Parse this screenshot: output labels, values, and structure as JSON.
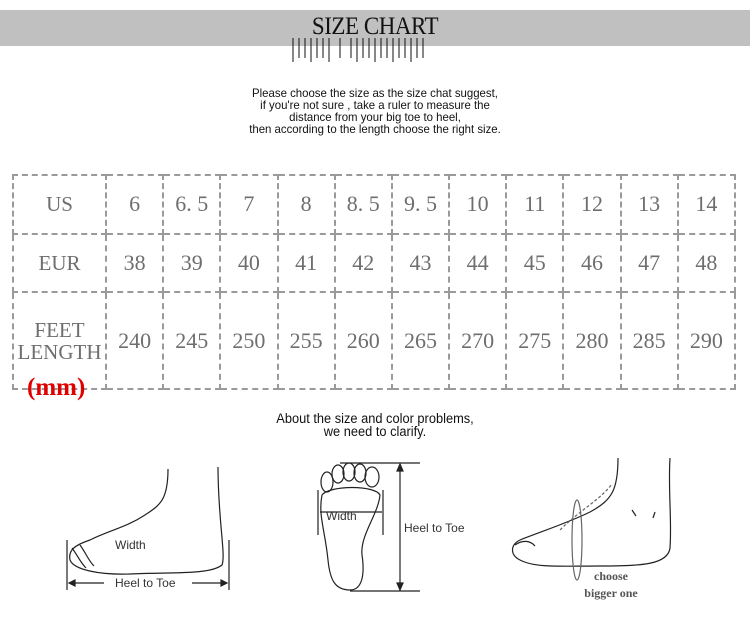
{
  "header": {
    "title": "SIZE CHART"
  },
  "intro_lines": [
    "Please choose the size as the size chat suggest,",
    "if you're not sure , take a ruler to measure the",
    "distance from your big toe to heel,",
    "then according to the length choose the right size."
  ],
  "table": {
    "rows": [
      {
        "label": "US",
        "values": [
          "6",
          "6. 5",
          "7",
          "8",
          "8. 5",
          "9. 5",
          "10",
          "11",
          "12",
          "13",
          "14"
        ]
      },
      {
        "label": "EUR",
        "values": [
          "38",
          "39",
          "40",
          "41",
          "42",
          "43",
          "44",
          "45",
          "46",
          "47",
          "48"
        ]
      },
      {
        "label": "FEET LENGTH",
        "values": [
          "240",
          "245",
          "250",
          "255",
          "260",
          "265",
          "270",
          "275",
          "280",
          "285",
          "290"
        ]
      }
    ],
    "unit": "(mm)",
    "unit_color": "#e00000"
  },
  "clarify_lines": [
    "About the size and color problems,",
    "we need to clarify."
  ],
  "diagrams": {
    "side_width": "Width",
    "side_length": "Heel to Toe",
    "sole_width": "Width",
    "sole_length": "Heel to Toe",
    "tip_line1": "choose",
    "tip_line2": "bigger one"
  }
}
